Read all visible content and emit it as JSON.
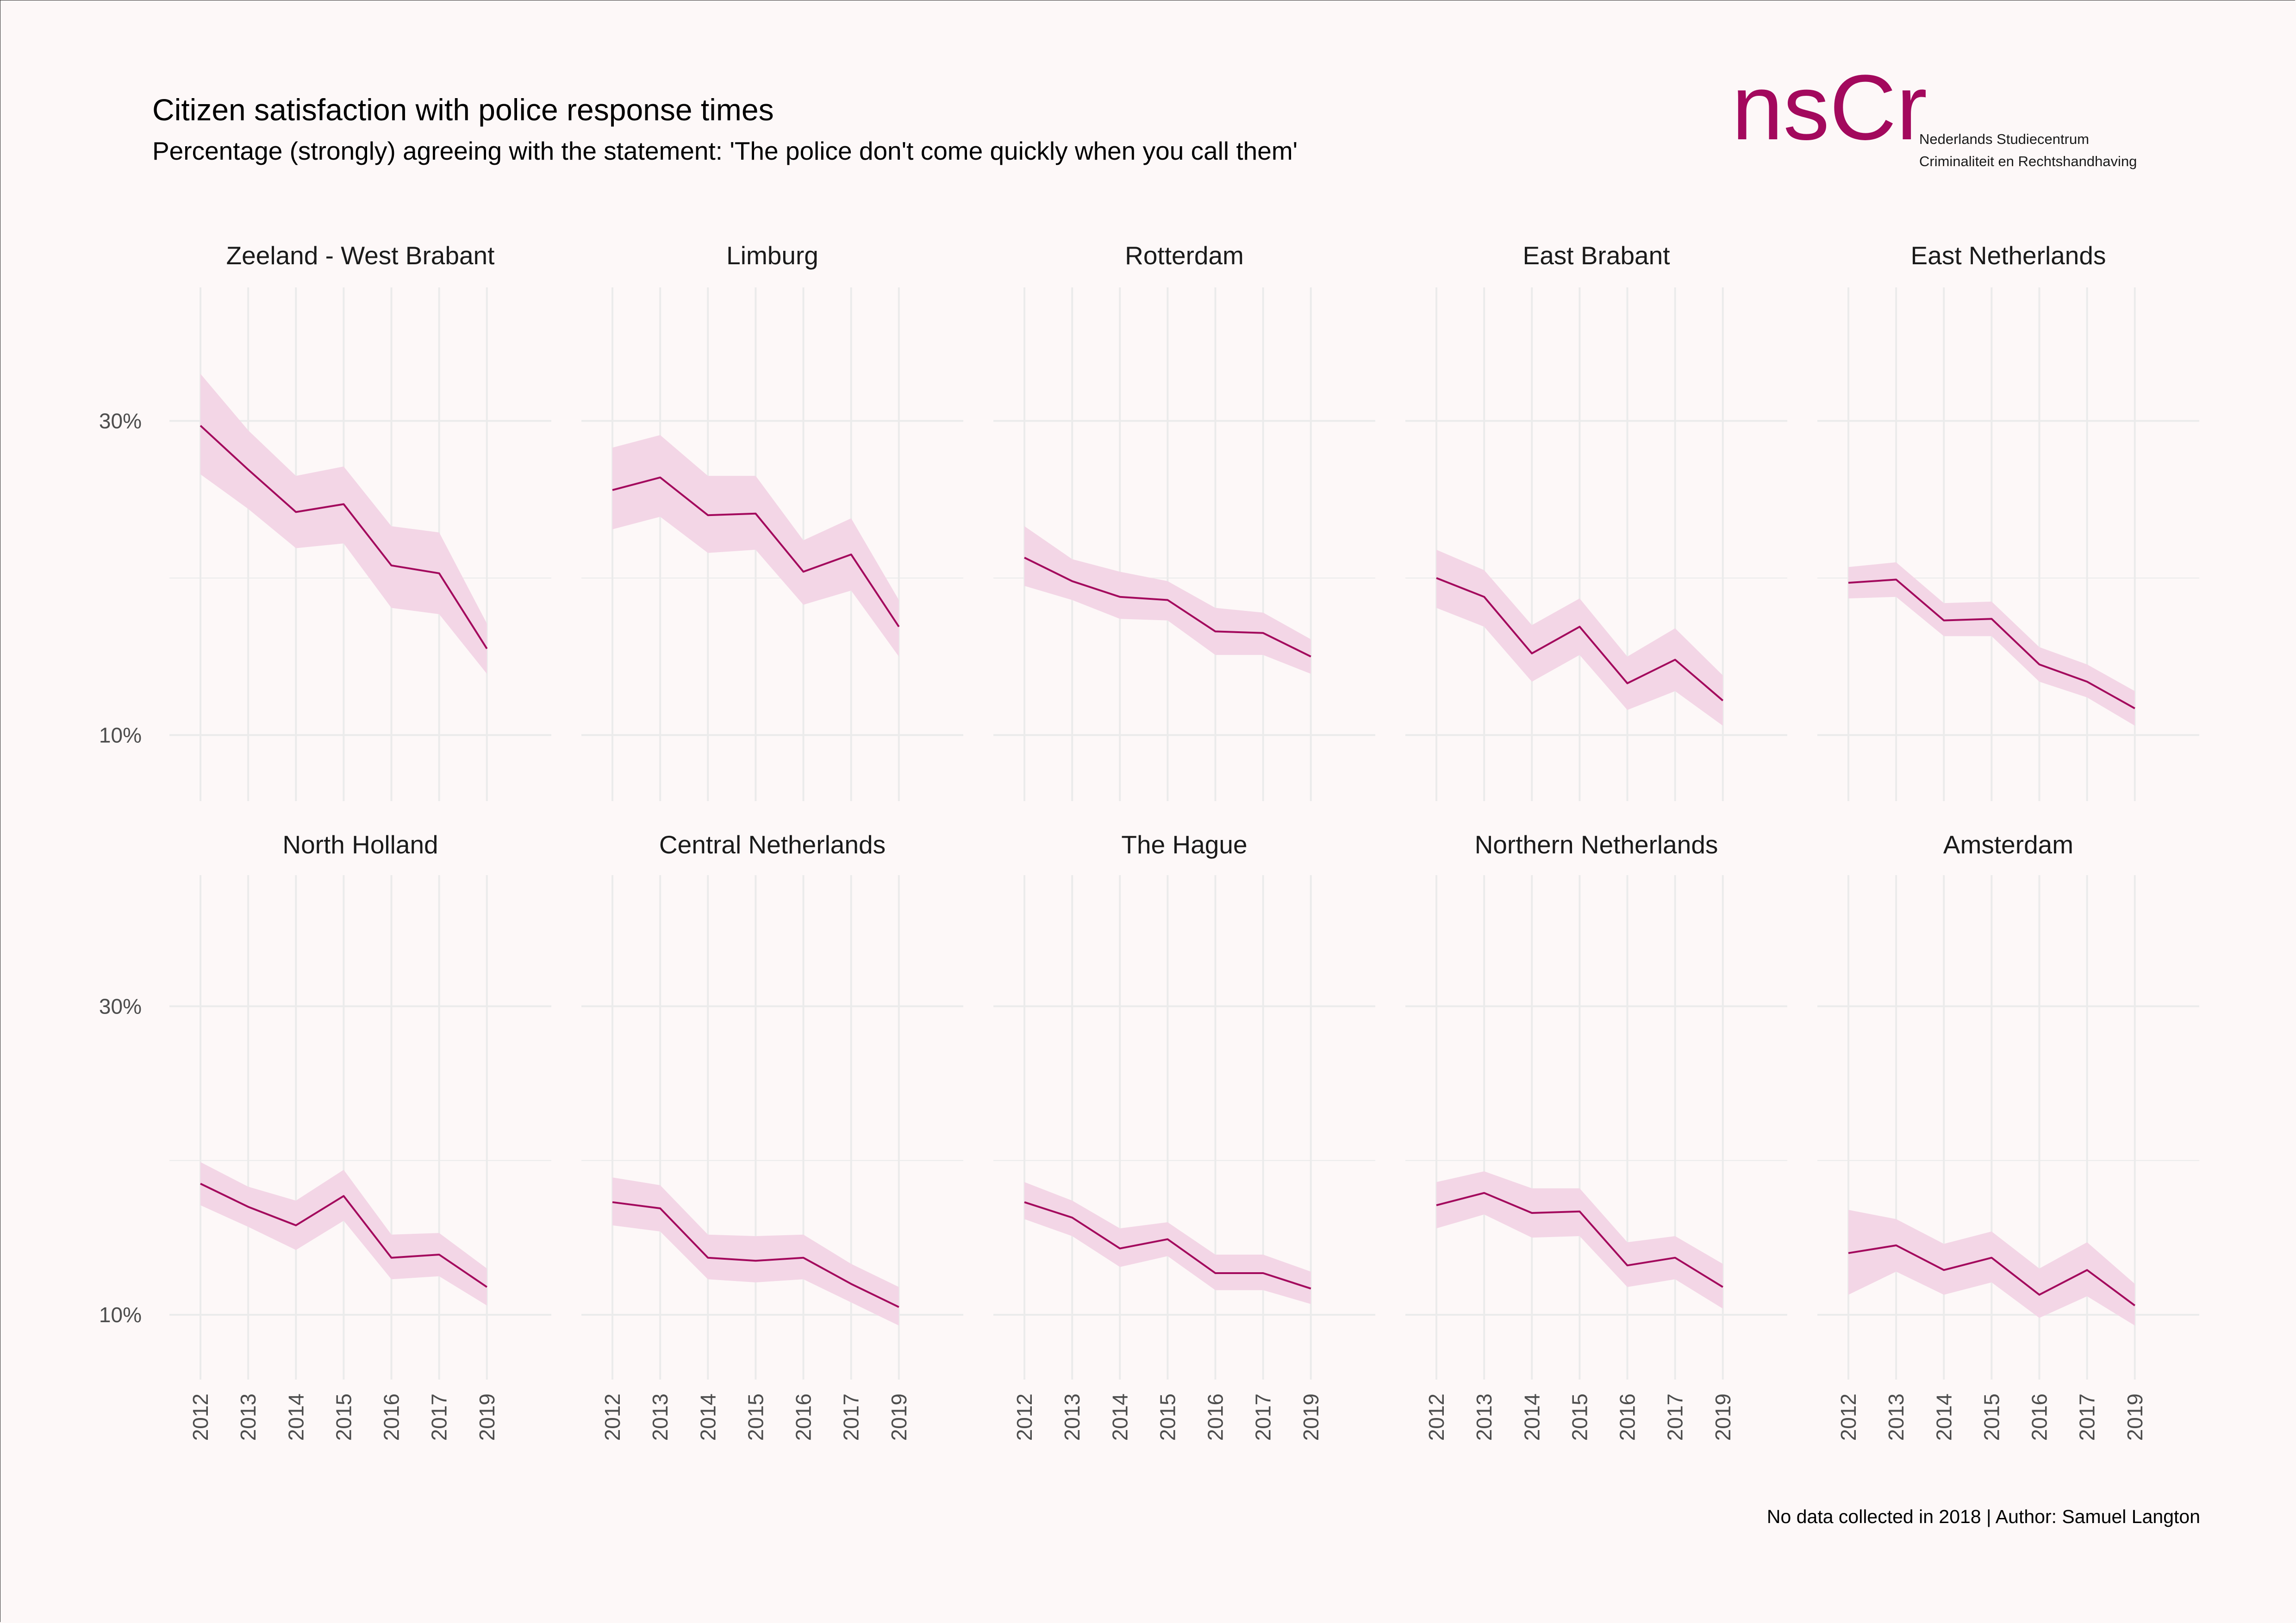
{
  "header": {
    "title": "Citizen satisfaction with police response times",
    "subtitle": "Percentage (strongly) agreeing with the statement: 'The police don't come quickly when you call them'"
  },
  "logo": {
    "word": "nsCr",
    "line1": "Nederlands Studiecentrum",
    "line2": "Criminaliteit en Rechtshandhaving",
    "color": "#a3095d"
  },
  "caption": "No data collected in 2018 | Author: Samuel Langton",
  "colors": {
    "line": "#a3095d",
    "ribbon": "#f3d6e6",
    "grid": "#ebebeb",
    "background": "#fdf8f8"
  },
  "chart_data": {
    "type": "line",
    "facet_layout": "2 rows x 5 columns",
    "x": [
      "2012",
      "2013",
      "2014",
      "2015",
      "2016",
      "2017",
      "2019"
    ],
    "y_ticks": [
      "30%",
      "10%"
    ],
    "ylim": [
      5.8,
      38.5
    ],
    "grid": true,
    "panels": [
      {
        "name": "Zeeland - West Brabant",
        "values": [
          29.7,
          26.9,
          24.2,
          24.7,
          20.8,
          20.3,
          15.5
        ],
        "lower": [
          26.6,
          24.4,
          21.9,
          22.2,
          18.1,
          17.7,
          13.9
        ],
        "upper": [
          33.0,
          29.4,
          26.5,
          27.1,
          23.3,
          22.9,
          17.1
        ]
      },
      {
        "name": "Limburg",
        "values": [
          25.6,
          26.4,
          24.0,
          24.1,
          20.4,
          21.5,
          16.9
        ],
        "lower": [
          23.1,
          23.9,
          21.6,
          21.8,
          18.3,
          19.2,
          15.0
        ],
        "upper": [
          28.3,
          29.1,
          26.5,
          26.5,
          22.4,
          23.8,
          18.6
        ]
      },
      {
        "name": "Rotterdam",
        "values": [
          21.3,
          19.8,
          18.8,
          18.6,
          16.6,
          16.5,
          15.0
        ],
        "lower": [
          19.5,
          18.6,
          17.4,
          17.3,
          15.1,
          15.1,
          13.9
        ],
        "upper": [
          23.3,
          21.2,
          20.4,
          19.8,
          18.1,
          17.8,
          16.1
        ]
      },
      {
        "name": "East Brabant",
        "values": [
          20.0,
          18.8,
          15.2,
          16.9,
          13.3,
          14.8,
          12.2
        ],
        "lower": [
          18.1,
          16.9,
          13.4,
          15.1,
          11.6,
          12.8,
          10.6
        ],
        "upper": [
          21.8,
          20.5,
          17.0,
          18.7,
          15.0,
          16.8,
          13.8
        ]
      },
      {
        "name": "East Netherlands",
        "values": [
          19.7,
          19.9,
          17.3,
          17.4,
          14.5,
          13.4,
          11.7
        ],
        "lower": [
          18.7,
          18.8,
          16.3,
          16.3,
          13.4,
          12.4,
          10.6
        ],
        "upper": [
          20.7,
          21.0,
          18.4,
          18.5,
          15.6,
          14.5,
          12.8
        ]
      },
      {
        "name": "North Holland",
        "values": [
          18.5,
          17.0,
          15.8,
          17.7,
          13.7,
          13.9,
          11.8
        ],
        "lower": [
          17.1,
          15.7,
          14.2,
          16.1,
          12.3,
          12.5,
          10.6
        ],
        "upper": [
          19.9,
          18.3,
          17.4,
          19.4,
          15.2,
          15.3,
          13.0
        ]
      },
      {
        "name": "Central Netherlands",
        "values": [
          17.3,
          16.9,
          13.7,
          13.5,
          13.7,
          12.0,
          10.5
        ],
        "lower": [
          15.8,
          15.4,
          12.3,
          12.1,
          12.3,
          10.8,
          9.3
        ],
        "upper": [
          18.9,
          18.4,
          15.2,
          15.1,
          15.2,
          13.3,
          11.8
        ]
      },
      {
        "name": "The Hague",
        "values": [
          17.3,
          16.3,
          14.3,
          14.9,
          12.7,
          12.7,
          11.7
        ],
        "lower": [
          16.2,
          15.1,
          13.1,
          13.8,
          11.6,
          11.6,
          10.7
        ],
        "upper": [
          18.6,
          17.4,
          15.6,
          16.0,
          13.9,
          13.9,
          12.8
        ]
      },
      {
        "name": "Northern Netherlands",
        "values": [
          17.1,
          17.9,
          16.6,
          16.7,
          13.2,
          13.7,
          11.8
        ],
        "lower": [
          15.6,
          16.5,
          15.0,
          15.1,
          11.8,
          12.3,
          10.4
        ],
        "upper": [
          18.6,
          19.3,
          18.2,
          18.2,
          14.7,
          15.1,
          13.3
        ]
      },
      {
        "name": "Amsterdam",
        "values": [
          14.0,
          14.5,
          12.9,
          13.7,
          11.3,
          12.9,
          10.6
        ],
        "lower": [
          11.3,
          12.8,
          11.3,
          12.1,
          9.8,
          11.2,
          9.3
        ],
        "upper": [
          16.8,
          16.2,
          14.6,
          15.4,
          13.0,
          14.7,
          12.0
        ]
      }
    ]
  }
}
